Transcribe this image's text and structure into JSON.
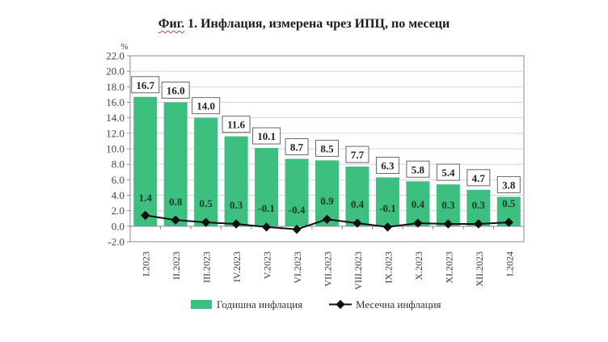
{
  "title": {
    "prefix": "Фиг.",
    "text": " 1. Инфлация, измерена чрез ИПЦ, по месеци"
  },
  "colors": {
    "bar": "#3dbf7f",
    "line": "#111111",
    "grid": "#d4d4d4",
    "axis": "#888888"
  },
  "chart_data": {
    "type": "bar",
    "title": "Фиг. 1. Инфлация, измерена чрез ИПЦ, по месеци",
    "xlabel": "",
    "ylabel": "%",
    "ylim": [
      -2.0,
      22.0
    ],
    "yticks": [
      "22.0",
      "20.0",
      "18.0",
      "16.0",
      "14.0",
      "12.0",
      "10.0",
      "8.0",
      "6.0",
      "4.0",
      "2.0",
      "0.0",
      "-2.0"
    ],
    "grid": true,
    "legend_position": "bottom",
    "categories": [
      "I.2023",
      "II.2023",
      "III.2023",
      "IV.2023",
      "V.2023",
      "VI.2023",
      "VII.2023",
      "VIII.2023",
      "IX.2023",
      "X.2023",
      "XI.2023",
      "XII.2023",
      "I.2024"
    ],
    "series": [
      {
        "name": "Годишна инфлация",
        "type": "bar",
        "values": [
          16.7,
          16.0,
          14.0,
          11.6,
          10.1,
          8.7,
          8.5,
          7.7,
          6.3,
          5.8,
          5.4,
          4.7,
          3.8
        ],
        "labels": [
          "16.7",
          "16.0",
          "14.0",
          "11.6",
          "10.1",
          "8.7",
          "8.5",
          "7.7",
          "6.3",
          "5.8",
          "5.4",
          "4.7",
          "3.8"
        ]
      },
      {
        "name": "Месечна инфлация",
        "type": "line",
        "values": [
          1.4,
          0.8,
          0.5,
          0.3,
          -0.1,
          -0.4,
          0.9,
          0.4,
          -0.1,
          0.4,
          0.3,
          0.3,
          0.5
        ],
        "labels": [
          "1.4",
          "0.8",
          "0.5",
          "0.3",
          "-0.1",
          "-0.4",
          "0.9",
          "0.4",
          "-0.1",
          "0.4",
          "0.3",
          "0.3",
          "0.5"
        ]
      }
    ]
  },
  "legend": {
    "annual": "Годишна инфлация",
    "monthly": "Месечна инфлация"
  }
}
